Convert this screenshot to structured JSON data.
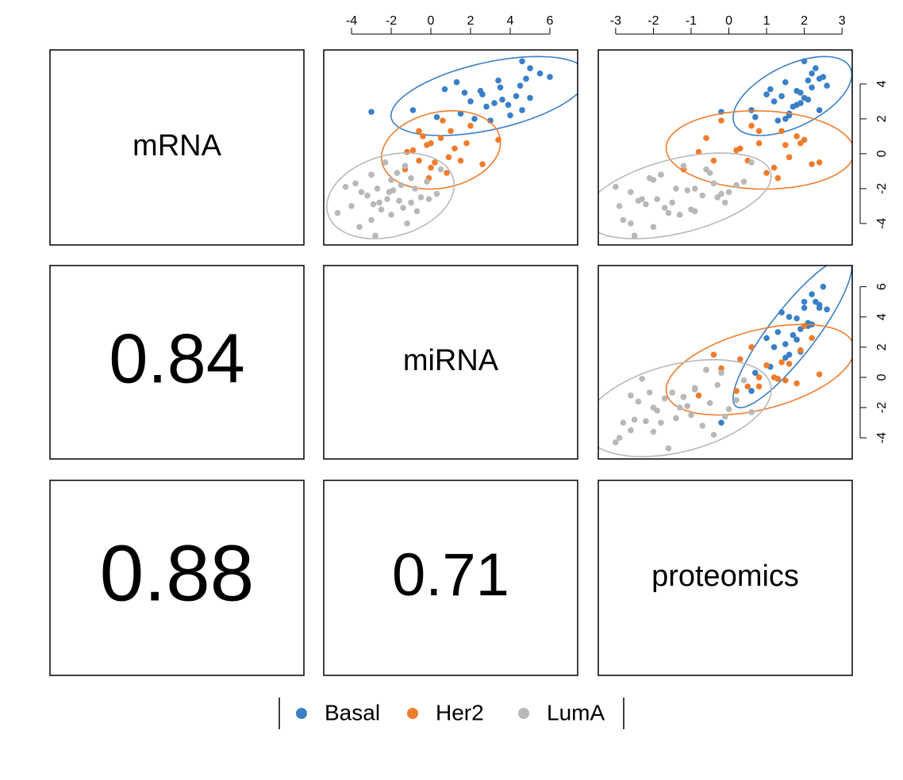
{
  "chart_data": {
    "type": "pairs",
    "variables": [
      "mRNA",
      "miRNA",
      "proteomics"
    ],
    "limits": [
      {
        "lim": [
          -5.23,
          5.95
        ],
        "ticks": [
          -4,
          -2,
          0,
          2,
          4
        ]
      },
      {
        "lim": [
          -5.4,
          7.4
        ],
        "ticks": [
          -4,
          -2,
          0,
          2,
          4,
          6
        ]
      },
      {
        "lim": [
          -3.46,
          3.27
        ],
        "ticks": [
          -3,
          -2,
          -1,
          0,
          1,
          2,
          3
        ]
      }
    ],
    "correlations": [
      [
        null,
        null,
        null
      ],
      [
        0.84,
        null,
        null
      ],
      [
        0.88,
        0.71,
        null
      ]
    ],
    "series": [
      {
        "name": "Basal",
        "color": "#3a7fc8",
        "values": [
          [
            5.3,
            4.9,
            4.4,
            4.1,
            3.8,
            3.6,
            3.3,
            3.0,
            2.9,
            2.7,
            2.5,
            2.3,
            2.1,
            2.0,
            3.1,
            2.5,
            4.6,
            3.4,
            2.4,
            3.9,
            1.9,
            3.5,
            4.3,
            2.8,
            3.2,
            3.7,
            4.2,
            2.2
          ],
          [
            4.6,
            5.0,
            6.0,
            1.3,
            3.5,
            2.5,
            4.3,
            2.0,
            3.2,
            2.8,
            4.6,
            1.5,
            0.3,
            2.2,
            3.6,
            -0.9,
            5.5,
            2.6,
            -3.0,
            4.5,
            3.0,
            1.7,
            4.8,
            3.9,
            5.0,
            0.7,
            3.4,
            4.0
          ],
          [
            2.0,
            2.3,
            2.5,
            1.5,
            2.2,
            1.8,
            1.4,
            1.2,
            1.9,
            1.7,
            2.4,
            1.6,
            0.7,
            1.5,
            2.1,
            0.6,
            2.2,
            1.0,
            -0.2,
            2.6,
            1.3,
            1.9,
            2.4,
            1.8,
            2.0,
            1.1,
            2.1,
            1.6
          ]
        ]
      },
      {
        "name": "Her2",
        "color": "#f07c2c",
        "values": [
          [
            1.9,
            1.6,
            1.3,
            1.0,
            0.8,
            0.6,
            0.5,
            0.3,
            0.1,
            -0.2,
            -0.4,
            -0.6,
            -0.9,
            -1.1,
            -0.5,
            0.6,
            -0.4,
            1.3,
            -1.4,
            0.2,
            0.9,
            -0.8
          ],
          [
            0.6,
            2.0,
            1.0,
            -0.4,
            3.4,
            0.0,
            -0.2,
            1.2,
            -1.2,
            0.9,
            -0.6,
            2.6,
            -1.3,
            0.8,
            0.2,
            1.8,
            1.5,
            -0.6,
            -0.1,
            -0.9,
            0.5,
            0.0
          ],
          [
            -0.2,
            0.6,
            1.4,
            1.8,
            2.0,
            0.8,
            1.5,
            0.3,
            -0.8,
            1.6,
            0.5,
            2.2,
            -1.2,
            1.0,
            2.4,
            1.9,
            -0.4,
            0.8,
            1.3,
            0.2,
            -0.6,
            1.2
          ]
        ]
      },
      {
        "name": "LumA",
        "color": "#b8b8b8",
        "values": [
          [
            -1.5,
            -2.2,
            -2.8,
            -3.0,
            -3.2,
            -4.0,
            -4.7,
            -2.5,
            -1.8,
            -0.5,
            -0.9,
            -1.2,
            -2.0,
            -2.6,
            -2.9,
            -3.5,
            -1.9,
            -2.3,
            -2.7,
            -3.4,
            -1.6,
            -2.1,
            -2.4,
            -3.1,
            -1.4,
            -2.8,
            -3.8,
            -2.0,
            -1.1,
            -2.6,
            -4.2,
            -0.7,
            -3.3,
            -2.2,
            -1.7
          ],
          [
            -2.0,
            -3.5,
            -1.0,
            -4.0,
            -2.5,
            -1.2,
            -2.8,
            -0.5,
            -1.5,
            -2.3,
            0.5,
            -3.0,
            -0.8,
            -2.2,
            -2.9,
            -2.0,
            -4.3,
            0.3,
            -1.6,
            -4.7,
            -0.2,
            -1.9,
            -3.2,
            -1.4,
            -1.0,
            -2.6,
            -3.0,
            -2.7,
            -1.7,
            -0.1,
            -3.6,
            -1.3,
            -0.7,
            -2.1,
            -3.8
          ],
          [
            -2.0,
            -2.6,
            -1.5,
            -2.9,
            -1.0,
            -2.6,
            -2.5,
            -0.3,
            0.2,
            0.6,
            -0.6,
            -1.8,
            -0.9,
            -1.9,
            -2.2,
            -1.3,
            -3.0,
            -0.2,
            -2.4,
            -1.6,
            0.4,
            -1.1,
            -0.7,
            -1.7,
            -2.1,
            -0.1,
            -2.8,
            -1.4,
            -0.5,
            -2.3,
            -2.0,
            -1.2,
            -0.9,
            0.0,
            -0.4
          ]
        ]
      }
    ]
  }
}
